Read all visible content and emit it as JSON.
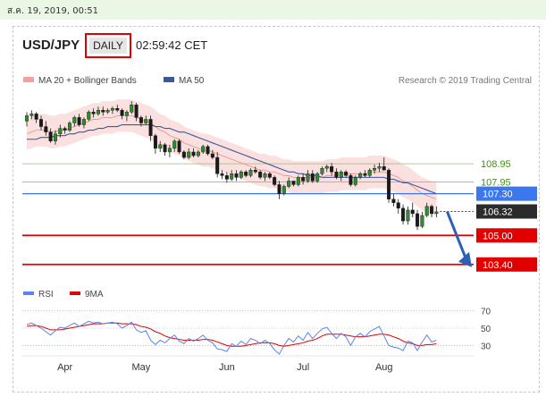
{
  "header": {
    "date_text": "ส.ค. 19, 2019, 00:51",
    "pair": "USD/JPY",
    "timeframe": "DAILY",
    "time": "02:59:42 CET",
    "credit": "Research © 2019 Trading Central"
  },
  "colors": {
    "bollinger": "#f4a0a0",
    "ma50": "#3b5998",
    "resistance": "#8ec26a",
    "pivot": "#3b78f0",
    "support": "#e00000",
    "rsi": "#5b84e6",
    "rsi_ma": "#e00000"
  },
  "chart_data": [
    {
      "type": "line",
      "title": "USD/JPY",
      "legend": [
        "MA 20 + Bollinger Bands",
        "MA 50"
      ],
      "x_ticks": [
        "Apr",
        "May",
        "Jun",
        "Jul",
        "Aug"
      ],
      "y_range": [
        102.6,
        112.9
      ],
      "levels": [
        {
          "label": "108.95",
          "value": 108.95,
          "kind": "resistance"
        },
        {
          "label": "107.95",
          "value": 107.95,
          "kind": "resistance"
        },
        {
          "label": "107.30",
          "value": 107.3,
          "kind": "pivot"
        },
        {
          "label": "106.32",
          "value": 106.32,
          "kind": "last"
        },
        {
          "label": "105.00",
          "value": 105.0,
          "kind": "support"
        },
        {
          "label": "103.40",
          "value": 103.4,
          "kind": "support"
        }
      ],
      "projection": {
        "from": 106.32,
        "to": 103.4
      },
      "ohlc": [
        [
          111.3,
          111.8,
          111.0,
          111.6
        ],
        [
          111.6,
          111.9,
          111.4,
          111.7
        ],
        [
          111.7,
          111.8,
          111.2,
          111.4
        ],
        [
          111.4,
          111.6,
          110.8,
          111.0
        ],
        [
          111.0,
          111.3,
          110.5,
          110.7
        ],
        [
          110.7,
          110.9,
          110.1,
          110.2
        ],
        [
          110.2,
          110.8,
          110.0,
          110.6
        ],
        [
          110.6,
          111.1,
          110.4,
          110.9
        ],
        [
          110.9,
          111.0,
          110.6,
          110.8
        ],
        [
          110.8,
          111.3,
          110.7,
          111.2
        ],
        [
          111.2,
          111.6,
          111.0,
          111.5
        ],
        [
          111.5,
          111.7,
          111.0,
          111.1
        ],
        [
          111.1,
          111.5,
          110.9,
          111.4
        ],
        [
          111.4,
          111.9,
          111.3,
          111.8
        ],
        [
          111.8,
          112.0,
          111.5,
          111.7
        ],
        [
          111.7,
          112.1,
          111.6,
          111.9
        ],
        [
          111.9,
          112.1,
          111.6,
          111.8
        ],
        [
          111.8,
          112.0,
          111.7,
          111.9
        ],
        [
          111.9,
          112.1,
          111.7,
          112.0
        ],
        [
          112.0,
          112.2,
          111.8,
          111.9
        ],
        [
          111.9,
          112.0,
          111.4,
          111.6
        ],
        [
          111.6,
          111.9,
          111.3,
          111.8
        ],
        [
          111.8,
          112.4,
          111.7,
          112.2
        ],
        [
          112.2,
          112.3,
          111.3,
          111.5
        ],
        [
          111.5,
          111.6,
          111.0,
          111.2
        ],
        [
          111.2,
          111.6,
          111.1,
          111.4
        ],
        [
          111.4,
          111.6,
          110.2,
          110.5
        ],
        [
          110.5,
          110.6,
          109.5,
          109.8
        ],
        [
          109.8,
          110.2,
          109.6,
          110.0
        ],
        [
          110.0,
          110.1,
          109.4,
          109.6
        ],
        [
          109.6,
          110.0,
          109.3,
          109.8
        ],
        [
          109.8,
          110.3,
          109.6,
          110.2
        ],
        [
          110.2,
          110.3,
          109.5,
          109.6
        ],
        [
          109.6,
          109.7,
          109.2,
          109.3
        ],
        [
          109.3,
          109.8,
          109.2,
          109.6
        ],
        [
          109.6,
          109.8,
          109.3,
          109.4
        ],
        [
          109.4,
          109.7,
          109.3,
          109.6
        ],
        [
          109.6,
          110.0,
          109.5,
          109.9
        ],
        [
          109.9,
          110.0,
          109.4,
          109.5
        ],
        [
          109.5,
          109.7,
          109.2,
          109.3
        ],
        [
          109.3,
          109.6,
          108.2,
          108.4
        ],
        [
          108.4,
          108.6,
          108.1,
          108.3
        ],
        [
          108.3,
          108.5,
          107.9,
          108.1
        ],
        [
          108.1,
          108.6,
          108.0,
          108.4
        ],
        [
          108.4,
          108.6,
          108.0,
          108.2
        ],
        [
          108.2,
          108.6,
          108.1,
          108.5
        ],
        [
          108.5,
          108.6,
          108.2,
          108.3
        ],
        [
          108.3,
          108.7,
          108.2,
          108.6
        ],
        [
          108.6,
          108.8,
          108.4,
          108.5
        ],
        [
          108.5,
          108.6,
          108.1,
          108.2
        ],
        [
          108.2,
          108.5,
          108.0,
          108.4
        ],
        [
          108.4,
          108.5,
          108.1,
          108.2
        ],
        [
          108.2,
          108.3,
          107.7,
          107.8
        ],
        [
          107.8,
          108.0,
          107.0,
          107.3
        ],
        [
          107.3,
          107.8,
          107.2,
          107.7
        ],
        [
          107.7,
          108.2,
          107.6,
          108.0
        ],
        [
          108.0,
          108.0,
          107.7,
          107.8
        ],
        [
          107.8,
          108.3,
          107.7,
          108.2
        ],
        [
          108.2,
          108.4,
          107.8,
          108.0
        ],
        [
          108.0,
          108.6,
          107.9,
          108.4
        ],
        [
          108.4,
          108.6,
          107.9,
          108.0
        ],
        [
          108.0,
          108.5,
          107.9,
          108.4
        ],
        [
          108.4,
          108.8,
          108.3,
          108.7
        ],
        [
          108.7,
          108.9,
          108.5,
          108.8
        ],
        [
          108.8,
          109.0,
          108.3,
          108.5
        ],
        [
          108.5,
          108.7,
          108.1,
          108.2
        ],
        [
          108.2,
          108.6,
          108.0,
          108.5
        ],
        [
          108.5,
          108.6,
          108.2,
          108.3
        ],
        [
          108.3,
          108.4,
          107.7,
          107.8
        ],
        [
          107.8,
          108.3,
          107.7,
          108.2
        ],
        [
          108.2,
          108.5,
          108.1,
          108.4
        ],
        [
          108.4,
          108.6,
          108.2,
          108.3
        ],
        [
          108.3,
          108.7,
          108.2,
          108.6
        ],
        [
          108.6,
          108.9,
          108.4,
          108.7
        ],
        [
          108.7,
          109.0,
          108.5,
          108.8
        ],
        [
          108.8,
          109.3,
          108.6,
          108.6
        ],
        [
          108.6,
          108.7,
          106.8,
          107.0
        ],
        [
          107.0,
          107.3,
          106.6,
          106.8
        ],
        [
          106.8,
          107.0,
          106.2,
          106.5
        ],
        [
          106.5,
          106.7,
          105.6,
          105.8
        ],
        [
          105.8,
          106.6,
          105.6,
          106.4
        ],
        [
          106.4,
          106.8,
          106.0,
          106.2
        ],
        [
          106.2,
          106.4,
          105.3,
          105.5
        ],
        [
          105.5,
          106.3,
          105.4,
          106.1
        ],
        [
          106.1,
          106.8,
          106.0,
          106.6
        ],
        [
          106.6,
          106.7,
          106.0,
          106.2
        ],
        [
          106.2,
          106.6,
          106.0,
          106.3
        ]
      ],
      "ma20": [
        110.6,
        110.7,
        110.8,
        110.8,
        110.8,
        110.7,
        110.7,
        110.8,
        110.8,
        110.9,
        111.0,
        111.1,
        111.2,
        111.3,
        111.4,
        111.4,
        111.5,
        111.5,
        111.5,
        111.6,
        111.6,
        111.6,
        111.6,
        111.5,
        111.4,
        111.3,
        111.2,
        111.0,
        110.8,
        110.7,
        110.5,
        110.4,
        110.3,
        110.1,
        110.0,
        109.9,
        109.8,
        109.7,
        109.7,
        109.6,
        109.5,
        109.4,
        109.3,
        109.2,
        109.1,
        109.0,
        108.9,
        108.8,
        108.7,
        108.6,
        108.6,
        108.5,
        108.5,
        108.4,
        108.3,
        108.3,
        108.2,
        108.2,
        108.2,
        108.2,
        108.2,
        108.2,
        108.2,
        108.3,
        108.3,
        108.3,
        108.4,
        108.4,
        108.4,
        108.4,
        108.4,
        108.4,
        108.5,
        108.5,
        108.5,
        108.5,
        108.4,
        108.3,
        108.2,
        108.0,
        107.9,
        107.7,
        107.5,
        107.3,
        107.2,
        107.1,
        107.0
      ],
      "bb_width": 0.9,
      "ma50": [
        110.3,
        110.3,
        110.3,
        110.4,
        110.4,
        110.4,
        110.5,
        110.5,
        110.5,
        110.6,
        110.6,
        110.7,
        110.7,
        110.8,
        110.8,
        110.9,
        110.9,
        111.0,
        111.0,
        111.0,
        111.1,
        111.1,
        111.1,
        111.1,
        111.1,
        111.1,
        111.1,
        111.0,
        111.0,
        110.9,
        110.9,
        110.8,
        110.7,
        110.7,
        110.6,
        110.5,
        110.4,
        110.3,
        110.2,
        110.1,
        110.0,
        109.9,
        109.8,
        109.7,
        109.6,
        109.5,
        109.4,
        109.3,
        109.2,
        109.1,
        109.0,
        108.9,
        108.8,
        108.7,
        108.6,
        108.5,
        108.5,
        108.4,
        108.4,
        108.3,
        108.3,
        108.3,
        108.2,
        108.2,
        108.2,
        108.2,
        108.2,
        108.2,
        108.2,
        108.2,
        108.2,
        108.2,
        108.2,
        108.2,
        108.2,
        108.2,
        108.1,
        108.1,
        108.0,
        107.9,
        107.9,
        107.8,
        107.7,
        107.6,
        107.5,
        107.4,
        107.3
      ]
    },
    {
      "type": "line",
      "legend": [
        "RSI",
        "9MA"
      ],
      "y_ticks": [
        70,
        50,
        30
      ],
      "y_range": [
        20,
        80
      ],
      "rsi": [
        54,
        56,
        53,
        50,
        46,
        42,
        47,
        51,
        50,
        53,
        56,
        52,
        55,
        58,
        56,
        57,
        55,
        56,
        57,
        55,
        50,
        53,
        57,
        48,
        45,
        47,
        36,
        31,
        36,
        33,
        38,
        42,
        35,
        32,
        38,
        35,
        38,
        42,
        36,
        33,
        26,
        25,
        23,
        32,
        29,
        35,
        31,
        38,
        36,
        32,
        36,
        32,
        25,
        20,
        30,
        38,
        34,
        41,
        36,
        45,
        38,
        44,
        49,
        51,
        44,
        38,
        44,
        40,
        30,
        40,
        44,
        40,
        46,
        49,
        52,
        41,
        30,
        28,
        27,
        24,
        35,
        33,
        24,
        34,
        42,
        34,
        36
      ],
      "rsi_ma": [
        52,
        53,
        53,
        52,
        50,
        48,
        48,
        48,
        49,
        50,
        51,
        52,
        53,
        54,
        55,
        55,
        55,
        56,
        56,
        56,
        55,
        55,
        55,
        54,
        52,
        51,
        49,
        46,
        44,
        41,
        39,
        38,
        37,
        36,
        36,
        36,
        36,
        37,
        37,
        36,
        34,
        32,
        30,
        29,
        29,
        29,
        30,
        31,
        32,
        33,
        33,
        33,
        32,
        30,
        29,
        30,
        31,
        32,
        33,
        35,
        36,
        38,
        41,
        43,
        43,
        43,
        43,
        42,
        41,
        40,
        40,
        40,
        41,
        42,
        43,
        43,
        42,
        40,
        38,
        35,
        33,
        32,
        30,
        30,
        31,
        31,
        32
      ]
    }
  ]
}
